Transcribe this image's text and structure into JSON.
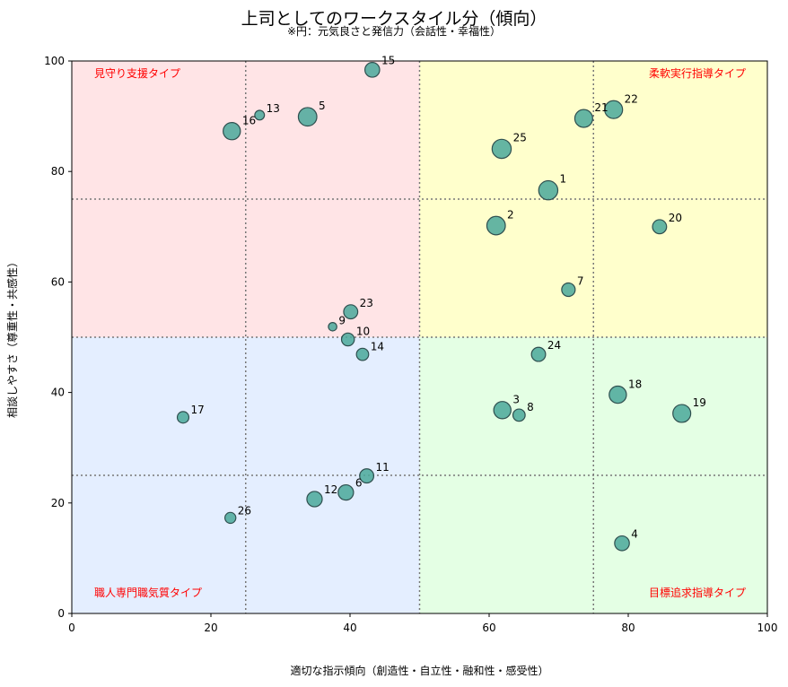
{
  "chart_data": {
    "type": "scatter",
    "title": "上司としてのワークスタイル分（傾向）",
    "subtitle": "※円：元気良さと発信力（会話性・幸福性）",
    "xlabel": "適切な指示傾向（創造性・自立性・融和性・感受性）",
    "ylabel": "相談しやすさ（尊重性・共感性）",
    "xlim": [
      0,
      100
    ],
    "ylim": [
      0,
      100
    ],
    "xticks": [
      "0",
      "20",
      "40",
      "60",
      "80",
      "100"
    ],
    "yticks": [
      "0",
      "20",
      "40",
      "60",
      "80",
      "100"
    ],
    "grid_lines": [
      25,
      50,
      75
    ],
    "quadrant_labels": {
      "top_left": "見守り支援タイプ",
      "top_right": "柔軟実行指導タイプ",
      "bottom_left": "職人専門職気質タイプ",
      "bottom_right": "目標追求指導タイプ"
    },
    "colors": {
      "top_left": "#ffe4e6",
      "top_right": "#ffffcc",
      "bottom_left": "#e4eeff",
      "bottom_right": "#e4ffe4",
      "marker": "#4aa89a",
      "quad_label": "#ff0000"
    },
    "points": [
      {
        "label": "1",
        "x": 68.5,
        "y": 76.6,
        "size": 0.95
      },
      {
        "label": "2",
        "x": 61.0,
        "y": 70.2,
        "size": 0.9
      },
      {
        "label": "3",
        "x": 61.9,
        "y": 36.8,
        "size": 0.8
      },
      {
        "label": "4",
        "x": 79.1,
        "y": 12.7,
        "size": 0.6
      },
      {
        "label": "5",
        "x": 33.9,
        "y": 89.9,
        "size": 0.9
      },
      {
        "label": "6",
        "x": 39.4,
        "y": 21.9,
        "size": 0.65
      },
      {
        "label": "7",
        "x": 71.4,
        "y": 58.6,
        "size": 0.5
      },
      {
        "label": "8",
        "x": 64.3,
        "y": 35.9,
        "size": 0.4
      },
      {
        "label": "9",
        "x": 37.5,
        "y": 51.9,
        "size": 0.1
      },
      {
        "label": "10",
        "x": 39.7,
        "y": 49.6,
        "size": 0.45
      },
      {
        "label": "11",
        "x": 42.4,
        "y": 24.9,
        "size": 0.55
      },
      {
        "label": "12",
        "x": 34.9,
        "y": 20.7,
        "size": 0.65
      },
      {
        "label": "13",
        "x": 27.0,
        "y": 90.2,
        "size": 0.2
      },
      {
        "label": "14",
        "x": 41.8,
        "y": 46.9,
        "size": 0.4
      },
      {
        "label": "15",
        "x": 43.2,
        "y": 98.4,
        "size": 0.6
      },
      {
        "label": "16",
        "x": 23.0,
        "y": 87.3,
        "size": 0.8
      },
      {
        "label": "17",
        "x": 16.0,
        "y": 35.5,
        "size": 0.35
      },
      {
        "label": "18",
        "x": 78.5,
        "y": 39.6,
        "size": 0.8
      },
      {
        "label": "19",
        "x": 87.7,
        "y": 36.2,
        "size": 0.85
      },
      {
        "label": "20",
        "x": 84.5,
        "y": 70.0,
        "size": 0.55
      },
      {
        "label": "21",
        "x": 73.6,
        "y": 89.6,
        "size": 0.85
      },
      {
        "label": "22",
        "x": 77.9,
        "y": 91.2,
        "size": 0.85
      },
      {
        "label": "23",
        "x": 40.1,
        "y": 54.6,
        "size": 0.55
      },
      {
        "label": "24",
        "x": 67.1,
        "y": 46.9,
        "size": 0.55
      },
      {
        "label": "25",
        "x": 61.8,
        "y": 84.1,
        "size": 0.95
      },
      {
        "label": "26",
        "x": 22.8,
        "y": 17.3,
        "size": 0.3
      }
    ]
  }
}
